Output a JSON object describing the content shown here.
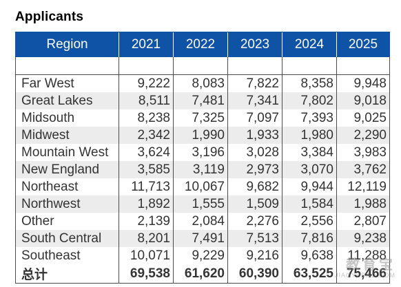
{
  "title": "Applicants",
  "header": {
    "region_label": "Region",
    "years": [
      "2021",
      "2022",
      "2023",
      "2024",
      "2025"
    ]
  },
  "rows": [
    {
      "region": "Far West",
      "values": [
        "9,222",
        "8,083",
        "7,822",
        "8,358",
        "9,948"
      ]
    },
    {
      "region": "Great Lakes",
      "values": [
        "8,511",
        "7,481",
        "7,341",
        "7,802",
        "9,018"
      ]
    },
    {
      "region": "Midsouth",
      "values": [
        "8,238",
        "7,325",
        "7,097",
        "7,393",
        "9,025"
      ]
    },
    {
      "region": "Midwest",
      "values": [
        "2,342",
        "1,990",
        "1,933",
        "1,980",
        "2,290"
      ]
    },
    {
      "region": "Mountain West",
      "values": [
        "3,624",
        "3,196",
        "3,028",
        "3,384",
        "3,983"
      ]
    },
    {
      "region": "New England",
      "values": [
        "3,585",
        "3,119",
        "2,973",
        "3,070",
        "3,762"
      ]
    },
    {
      "region": "Northeast",
      "values": [
        "11,713",
        "10,067",
        "9,682",
        "9,944",
        "12,119"
      ]
    },
    {
      "region": "Northwest",
      "values": [
        "1,892",
        "1,555",
        "1,509",
        "1,584",
        "1,988"
      ]
    },
    {
      "region": "Other",
      "values": [
        "2,139",
        "2,084",
        "2,276",
        "2,556",
        "2,807"
      ]
    },
    {
      "region": "South Central",
      "values": [
        "8,201",
        "7,491",
        "7,513",
        "7,816",
        "9,238"
      ]
    },
    {
      "region": "Southeast",
      "values": [
        "10,071",
        "9,229",
        "9,216",
        "9,638",
        "11,288"
      ]
    }
  ],
  "total": {
    "label": "总计",
    "values": [
      "69,538",
      "61,620",
      "60,390",
      "63,525",
      "75,466"
    ]
  },
  "watermark": {
    "main": "教育宝",
    "sub": "JIAOYUBAO.COM"
  },
  "colors": {
    "header_bg": "#0f53a6",
    "header_text": "#ffffff",
    "alt_row": "#ececec",
    "text": "#333333"
  }
}
